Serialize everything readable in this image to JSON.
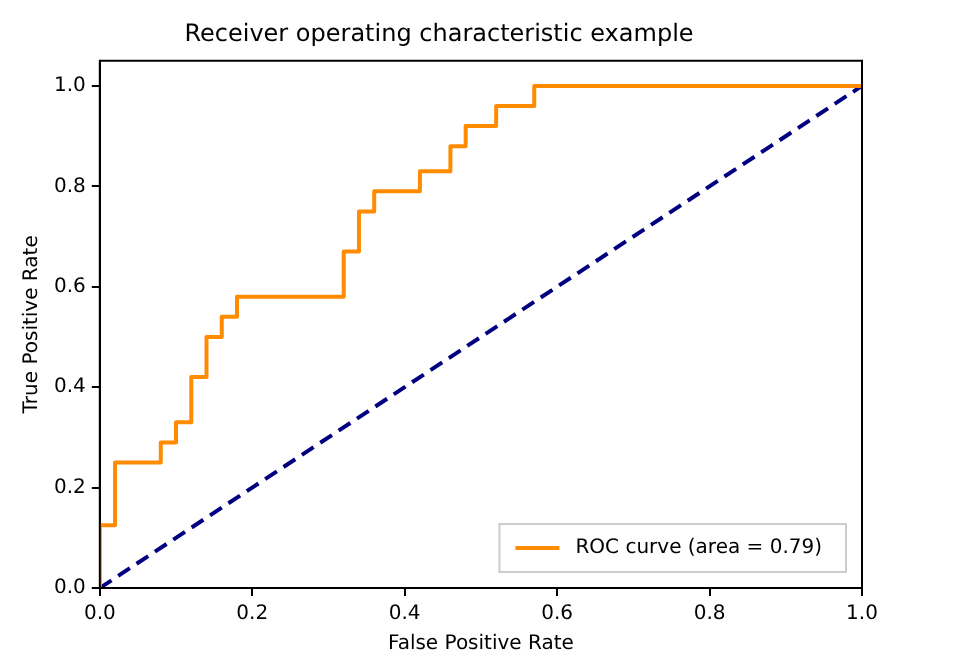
{
  "chart_data": {
    "type": "line",
    "title": "Receiver operating characteristic example",
    "xlabel": "False Positive Rate",
    "ylabel": "True Positive Rate",
    "xlim": [
      0,
      1
    ],
    "ylim": [
      0,
      1.05
    ],
    "xticks": [
      {
        "value": 0,
        "label": "0.0"
      },
      {
        "value": 0.2,
        "label": "0.2"
      },
      {
        "value": 0.4,
        "label": "0.4"
      },
      {
        "value": 0.6,
        "label": "0.6"
      },
      {
        "value": 0.8,
        "label": "0.8"
      },
      {
        "value": 1,
        "label": "1.0"
      }
    ],
    "yticks": [
      {
        "value": 0,
        "label": "0.0"
      },
      {
        "value": 0.2,
        "label": "0.2"
      },
      {
        "value": 0.4,
        "label": "0.4"
      },
      {
        "value": 0.6,
        "label": "0.6"
      },
      {
        "value": 0.8,
        "label": "0.8"
      },
      {
        "value": 1,
        "label": "1.0"
      }
    ],
    "grid": false,
    "legend": "bottom right",
    "marker": "none",
    "series": [
      {
        "name": "ROC curve (area = 0.79)",
        "color": "#ff8c00",
        "line_style": "solid",
        "x": [
          0,
          0,
          0.02,
          0.02,
          0.08,
          0.08,
          0.1,
          0.1,
          0.12,
          0.12,
          0.14,
          0.14,
          0.16,
          0.16,
          0.18,
          0.18,
          0.32,
          0.32,
          0.34,
          0.34,
          0.36,
          0.36,
          0.42,
          0.42,
          0.46,
          0.46,
          0.48,
          0.48,
          0.52,
          0.52,
          0.57,
          0.57,
          1
        ],
        "values": [
          0,
          0.125,
          0.125,
          0.25,
          0.25,
          0.29,
          0.29,
          0.33,
          0.33,
          0.42,
          0.42,
          0.5,
          0.5,
          0.54,
          0.54,
          0.58,
          0.58,
          0.67,
          0.67,
          0.75,
          0.75,
          0.79,
          0.79,
          0.83,
          0.83,
          0.88,
          0.88,
          0.92,
          0.92,
          0.96,
          0.96,
          1,
          1
        ]
      },
      {
        "color": "#000080",
        "line_style": "dashed",
        "x": [
          0,
          1
        ],
        "values": [
          0,
          1
        ]
      }
    ]
  }
}
